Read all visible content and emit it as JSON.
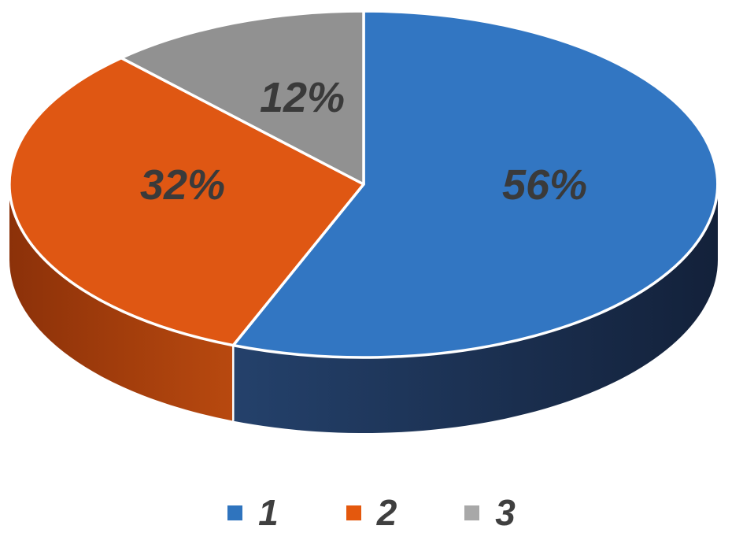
{
  "chart_data": {
    "type": "pie",
    "style": "3d-pie",
    "title": "",
    "categories": [
      "1",
      "2",
      "3"
    ],
    "values": [
      56,
      32,
      12
    ],
    "data_labels": [
      "56%",
      "32%",
      "12%"
    ],
    "slice_colors": [
      "#3276C2",
      "#DF5713",
      "#919191"
    ],
    "slice_side_colors": [
      [
        "#24416B",
        "#13213A"
      ],
      [
        "#8C3109",
        "#B8490F"
      ],
      [
        "#6E6E6E",
        "#6E6E6E"
      ]
    ],
    "separator_color": "#FFFFFF",
    "label_color": "#3A3A3A",
    "background": "#FFFFFF",
    "rotation": "clockwise-from-top",
    "legend": {
      "position": "bottom",
      "text_color": "#3F3F3F",
      "entries": [
        {
          "label": "1",
          "swatch_color": "#2F74BE"
        },
        {
          "label": "2",
          "swatch_color": "#E4580D"
        },
        {
          "label": "3",
          "swatch_color": "#A8A8A8"
        }
      ]
    }
  }
}
